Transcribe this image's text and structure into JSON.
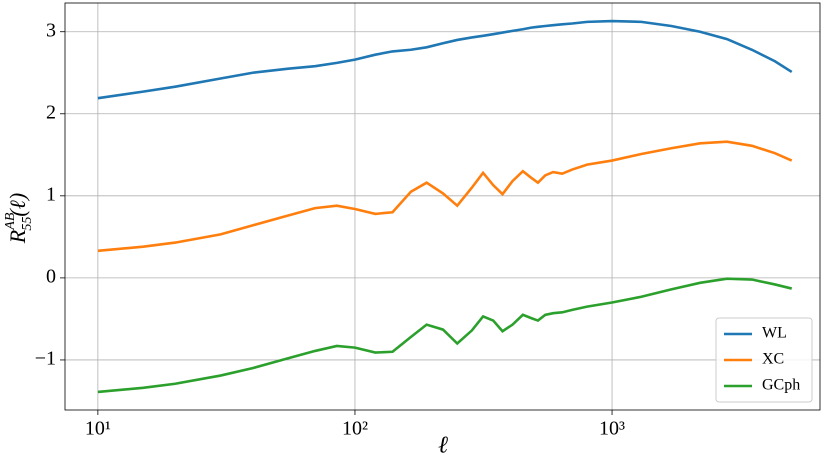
{
  "chart_data": {
    "type": "line",
    "x_label": "ℓ",
    "y_label": {
      "base": "R",
      "sup": "AB",
      "sub": "55",
      "tail": "(ℓ)"
    },
    "x": [
      10,
      15,
      20,
      30,
      40,
      55,
      70,
      85,
      100,
      120,
      140,
      165,
      190,
      220,
      250,
      285,
      315,
      345,
      375,
      410,
      450,
      485,
      515,
      550,
      590,
      640,
      700,
      800,
      1000,
      1300,
      1700,
      2200,
      2800,
      3500,
      4300,
      5000
    ],
    "series": [
      {
        "name": "WL",
        "color": "#1f77b4",
        "values": [
          2.19,
          2.27,
          2.33,
          2.43,
          2.5,
          2.55,
          2.58,
          2.62,
          2.66,
          2.72,
          2.76,
          2.78,
          2.81,
          2.86,
          2.9,
          2.93,
          2.95,
          2.97,
          2.99,
          3.01,
          3.03,
          3.05,
          3.06,
          3.07,
          3.08,
          3.09,
          3.1,
          3.12,
          3.13,
          3.12,
          3.07,
          3.0,
          2.91,
          2.78,
          2.64,
          2.51
        ]
      },
      {
        "name": "XC",
        "color": "#ff7f0e",
        "values": [
          0.33,
          0.38,
          0.43,
          0.53,
          0.64,
          0.76,
          0.85,
          0.88,
          0.84,
          0.78,
          0.8,
          1.05,
          1.16,
          1.03,
          0.88,
          1.1,
          1.28,
          1.13,
          1.02,
          1.18,
          1.3,
          1.22,
          1.16,
          1.25,
          1.29,
          1.27,
          1.32,
          1.38,
          1.43,
          1.51,
          1.58,
          1.64,
          1.66,
          1.61,
          1.52,
          1.43
        ]
      },
      {
        "name": "GCph",
        "color": "#2ca02c",
        "values": [
          -1.39,
          -1.34,
          -1.29,
          -1.19,
          -1.1,
          -0.98,
          -0.89,
          -0.83,
          -0.85,
          -0.91,
          -0.9,
          -0.72,
          -0.57,
          -0.63,
          -0.8,
          -0.64,
          -0.47,
          -0.52,
          -0.65,
          -0.57,
          -0.45,
          -0.49,
          -0.52,
          -0.45,
          -0.43,
          -0.42,
          -0.39,
          -0.35,
          -0.3,
          -0.23,
          -0.14,
          -0.06,
          -0.01,
          -0.02,
          -0.08,
          -0.13
        ]
      }
    ],
    "xscale": "log",
    "xlim": [
      7.45,
      6440
    ],
    "xticks": [
      {
        "value": 10,
        "label": "10¹"
      },
      {
        "value": 100,
        "label": "10²"
      },
      {
        "value": 1000,
        "label": "10³"
      }
    ],
    "ylim": [
      -1.61,
      3.35
    ],
    "yticks": [
      {
        "value": -1,
        "label": "−1"
      },
      0,
      1,
      2,
      3
    ],
    "grid": true,
    "legend": "lower right"
  }
}
